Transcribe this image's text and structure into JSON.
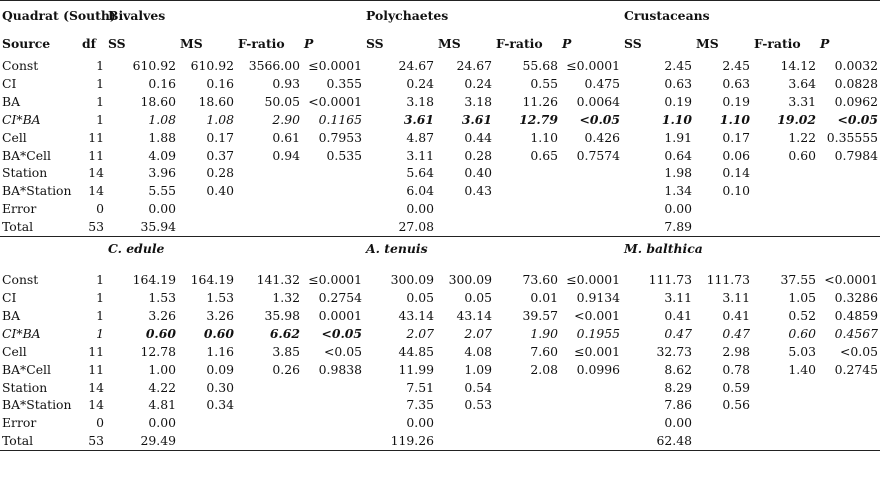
{
  "quadrat_label": "Quadrat (South)",
  "top": {
    "groups": [
      "Bivalves",
      "Polychaetes",
      "Crustaceans"
    ],
    "col_headers": {
      "source": "Source",
      "df": "df",
      "ss": "SS",
      "ms": "MS",
      "f": "F-ratio",
      "p": "P"
    },
    "rows": [
      {
        "source": "Const",
        "df": "1",
        "b": [
          "610.92",
          "610.92",
          "3566.00",
          "≤0.0001"
        ],
        "p": [
          "24.67",
          "24.67",
          "55.68",
          "≤0.0001"
        ],
        "c": [
          "2.45",
          "2.45",
          "14.12",
          "0.0032"
        ]
      },
      {
        "source": "CI",
        "df": "1",
        "b": [
          "0.16",
          "0.16",
          "0.93",
          "0.355"
        ],
        "p": [
          "0.24",
          "0.24",
          "0.55",
          "0.475"
        ],
        "c": [
          "0.63",
          "0.63",
          "3.64",
          "0.0828"
        ]
      },
      {
        "source": "BA",
        "df": "1",
        "b": [
          "18.60",
          "18.60",
          "50.05",
          "<0.0001"
        ],
        "p": [
          "3.18",
          "3.18",
          "11.26",
          "0.0064"
        ],
        "c": [
          "0.19",
          "0.19",
          "3.31",
          "0.0962"
        ]
      },
      {
        "source": "CI*BA",
        "df": "1",
        "b": [
          "1.08",
          "1.08",
          "2.90",
          "0.1165"
        ],
        "p": [
          "3.61",
          "3.61",
          "12.79",
          "<0.05"
        ],
        "c": [
          "1.10",
          "1.10",
          "19.02",
          "<0.05"
        ]
      },
      {
        "source": "Cell",
        "df": "11",
        "b": [
          "1.88",
          "0.17",
          "0.61",
          "0.7953"
        ],
        "p": [
          "4.87",
          "0.44",
          "1.10",
          "0.426"
        ],
        "c": [
          "1.91",
          "0.17",
          "1.22",
          "0.35555"
        ]
      },
      {
        "source": "BA*Cell",
        "df": "11",
        "b": [
          "4.09",
          "0.37",
          "0.94",
          "0.535"
        ],
        "p": [
          "3.11",
          "0.28",
          "0.65",
          "0.7574"
        ],
        "c": [
          "0.64",
          "0.06",
          "0.60",
          "0.7984"
        ]
      },
      {
        "source": "Station",
        "df": "14",
        "b": [
          "3.96",
          "0.28",
          "",
          ""
        ],
        "p": [
          "5.64",
          "0.40",
          "",
          ""
        ],
        "c": [
          "1.98",
          "0.14",
          "",
          ""
        ]
      },
      {
        "source": "BA*Station",
        "df": "14",
        "b": [
          "5.55",
          "0.40",
          "",
          ""
        ],
        "p": [
          "6.04",
          "0.43",
          "",
          ""
        ],
        "c": [
          "1.34",
          "0.10",
          "",
          ""
        ]
      },
      {
        "source": "Error",
        "df": "0",
        "b": [
          "0.00",
          "",
          "",
          ""
        ],
        "p": [
          "0.00",
          "",
          "",
          ""
        ],
        "c": [
          "0.00",
          "",
          "",
          ""
        ]
      },
      {
        "source": "Total",
        "df": "53",
        "b": [
          "35.94",
          "",
          "",
          ""
        ],
        "p": [
          "27.08",
          "",
          "",
          ""
        ],
        "c": [
          "7.89",
          "",
          "",
          ""
        ]
      }
    ]
  },
  "bottom": {
    "groups": [
      "C. edule",
      "A. tenuis",
      "M. balthica"
    ],
    "rows": [
      {
        "source": "Const",
        "df": "1",
        "b": [
          "164.19",
          "164.19",
          "141.32",
          "≤0.0001"
        ],
        "p": [
          "300.09",
          "300.09",
          "73.60",
          "≤0.0001"
        ],
        "c": [
          "111.73",
          "111.73",
          "37.55",
          "<0.0001"
        ]
      },
      {
        "source": "CI",
        "df": "1",
        "b": [
          "1.53",
          "1.53",
          "1.32",
          "0.2754"
        ],
        "p": [
          "0.05",
          "0.05",
          "0.01",
          "0.9134"
        ],
        "c": [
          "3.11",
          "3.11",
          "1.05",
          "0.3286"
        ]
      },
      {
        "source": "BA",
        "df": "1",
        "b": [
          "3.26",
          "3.26",
          "35.98",
          "0.0001"
        ],
        "p": [
          "43.14",
          "43.14",
          "39.57",
          "<0.001"
        ],
        "c": [
          "0.41",
          "0.41",
          "0.52",
          "0.4859"
        ]
      },
      {
        "source": "CI*BA",
        "df": "1",
        "b": [
          "0.60",
          "0.60",
          "6.62",
          "<0.05"
        ],
        "p": [
          "2.07",
          "2.07",
          "1.90",
          "0.1955"
        ],
        "c": [
          "0.47",
          "0.47",
          "0.60",
          "0.4567"
        ]
      },
      {
        "source": "Cell",
        "df": "11",
        "b": [
          "12.78",
          "1.16",
          "3.85",
          "<0.05"
        ],
        "p": [
          "44.85",
          "4.08",
          "7.60",
          "≤0.001"
        ],
        "c": [
          "32.73",
          "2.98",
          "5.03",
          "<0.05"
        ]
      },
      {
        "source": "BA*Cell",
        "df": "11",
        "b": [
          "1.00",
          "0.09",
          "0.26",
          "0.9838"
        ],
        "p": [
          "11.99",
          "1.09",
          "2.08",
          "0.0996"
        ],
        "c": [
          "8.62",
          "0.78",
          "1.40",
          "0.2745"
        ]
      },
      {
        "source": "Station",
        "df": "14",
        "b": [
          "4.22",
          "0.30",
          "",
          ""
        ],
        "p": [
          "7.51",
          "0.54",
          "",
          ""
        ],
        "c": [
          "8.29",
          "0.59",
          "",
          ""
        ]
      },
      {
        "source": "BA*Station",
        "df": "14",
        "b": [
          "4.81",
          "0.34",
          "",
          ""
        ],
        "p": [
          "7.35",
          "0.53",
          "",
          ""
        ],
        "c": [
          "7.86",
          "0.56",
          "",
          ""
        ]
      },
      {
        "source": "Error",
        "df": "0",
        "b": [
          "0.00",
          "",
          "",
          ""
        ],
        "p": [
          "0.00",
          "",
          "",
          ""
        ],
        "c": [
          "0.00",
          "",
          "",
          ""
        ]
      },
      {
        "source": "Total",
        "df": "53",
        "b": [
          "29.49",
          "",
          "",
          ""
        ],
        "p": [
          "119.26",
          "",
          "",
          ""
        ],
        "c": [
          "62.48",
          "",
          "",
          ""
        ]
      }
    ]
  }
}
